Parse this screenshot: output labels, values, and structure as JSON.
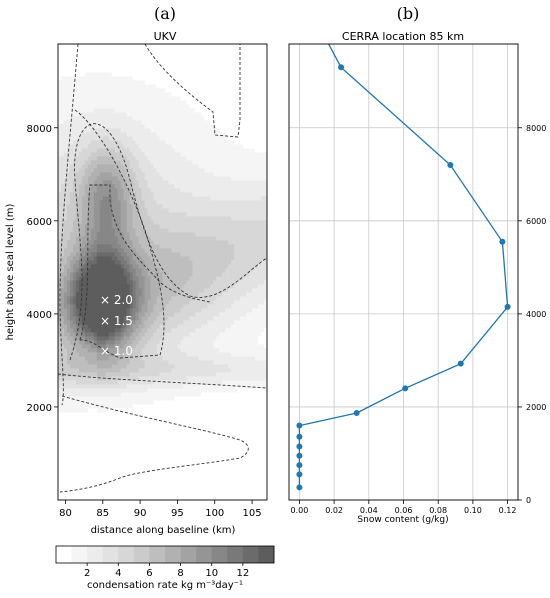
{
  "chart_data": [
    {
      "panel": "(a)",
      "type": "heatmap",
      "title": "UKV",
      "xlabel": "distance along baseline (km)",
      "ylabel": "height above seal level (m)",
      "xlim": [
        79,
        107
      ],
      "ylim": [
        0,
        9800
      ],
      "xticks": [
        80,
        85,
        90,
        95,
        100,
        105
      ],
      "yticks": [
        2000,
        4000,
        6000,
        8000
      ],
      "colorbar": {
        "label": "condensation rate kg m⁻³day⁻¹",
        "ticks": [
          2,
          4,
          6,
          8,
          10,
          12
        ],
        "levels": [
          0,
          1,
          2,
          3,
          4,
          5,
          6,
          7,
          8,
          9,
          10,
          11,
          12,
          13,
          14
        ],
        "colors": [
          "#ffffff",
          "#f5f5f5",
          "#ececec",
          "#e2e2e2",
          "#d7d7d7",
          "#cbcbcb",
          "#bebebe",
          "#b1b1b1",
          "#a3a3a3",
          "#959595",
          "#878787",
          "#797979",
          "#6b6b6b",
          "#5d5d5d"
        ]
      },
      "annotations": [
        {
          "text": "× 2.0",
          "x": 86.5,
          "y": 4300
        },
        {
          "text": "× 1.5",
          "x": 86.5,
          "y": 3850
        },
        {
          "text": "× 1.0",
          "x": 86.5,
          "y": 3200
        }
      ]
    },
    {
      "panel": "(b)",
      "type": "line",
      "title": "CERRA location 85 km",
      "xlabel": "Snow content (g/kg)",
      "ylabel": "",
      "xlim": [
        -0.006,
        0.126
      ],
      "ylim": [
        0,
        9800
      ],
      "xticks": [
        0.0,
        0.02,
        0.04,
        0.06,
        0.08,
        0.1,
        0.12
      ],
      "xticklabels": [
        "0.00",
        "0.02",
        "0.04",
        "0.06",
        "0.08",
        "0.10",
        "0.12"
      ],
      "yticks": [
        0,
        2000,
        4000,
        6000,
        8000
      ],
      "grid": true,
      "color": "#1f77b4",
      "series": [
        {
          "x": [
            0.014,
            0.024,
            0.087,
            0.117,
            0.12,
            0.093,
            0.061,
            0.033,
            0.0,
            0.0,
            0.0,
            0.0,
            0.0,
            0.0,
            0.0
          ],
          "y": [
            10000,
            9300,
            7200,
            5550,
            4150,
            2930,
            2400,
            1870,
            1600,
            1360,
            1150,
            950,
            750,
            550,
            270
          ],
          "markers": [
            false,
            true,
            true,
            true,
            true,
            true,
            true,
            true,
            true,
            true,
            true,
            true,
            true,
            true,
            true
          ]
        }
      ]
    }
  ]
}
